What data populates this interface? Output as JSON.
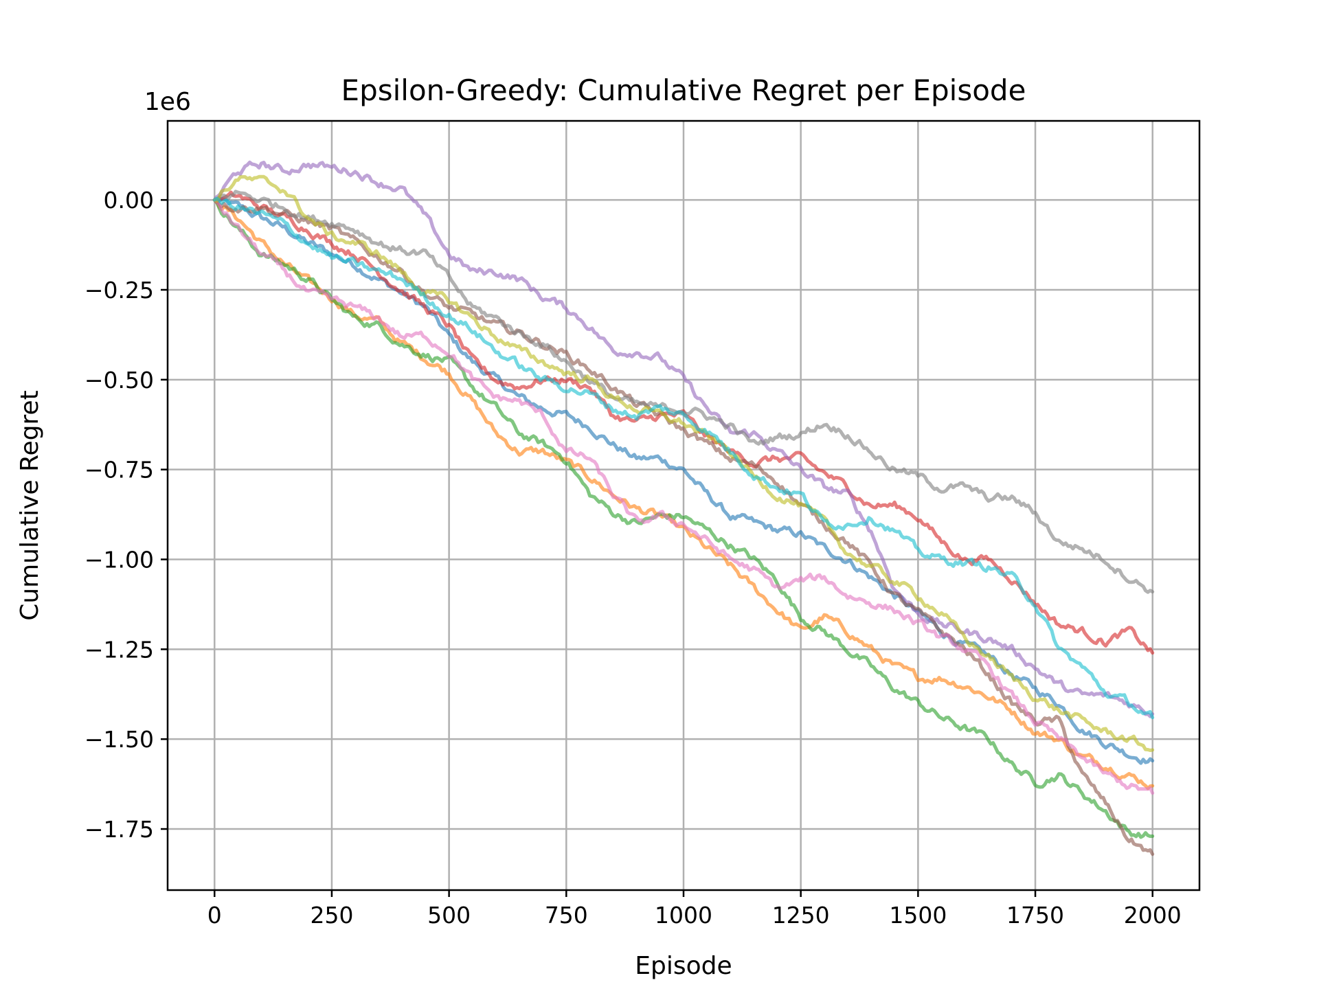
{
  "chart_data": {
    "type": "line",
    "title": "Epsilon-Greedy: Cumulative Regret per Episode",
    "xlabel": "Episode",
    "ylabel": "Cumulative Regret",
    "offset_text": "1e6",
    "xlim": [
      -100,
      2100
    ],
    "ylim": [
      -1.92,
      0.22
    ],
    "x_ticks": [
      0,
      250,
      500,
      750,
      1000,
      1250,
      1500,
      1750,
      2000
    ],
    "x_tick_labels": [
      "0",
      "250",
      "500",
      "750",
      "1000",
      "1250",
      "1500",
      "1750",
      "2000"
    ],
    "y_ticks": [
      0.0,
      -0.25,
      -0.5,
      -0.75,
      -1.0,
      -1.25,
      -1.5,
      -1.75
    ],
    "y_tick_labels": [
      "0.00",
      "−0.25",
      "−0.50",
      "−0.75",
      "−1.00",
      "−1.25",
      "−1.50",
      "−1.75"
    ],
    "grid": true,
    "legend": "none",
    "x": [
      0,
      50,
      100,
      150,
      200,
      250,
      300,
      350,
      400,
      450,
      500,
      550,
      600,
      650,
      700,
      750,
      800,
      850,
      900,
      950,
      1000,
      1050,
      1100,
      1150,
      1200,
      1250,
      1300,
      1350,
      1400,
      1450,
      1500,
      1550,
      1600,
      1650,
      1700,
      1750,
      1800,
      1850,
      1900,
      1950,
      2000
    ],
    "series": [
      {
        "color": "#1f77b4",
        "values": [
          0,
          -0.02,
          -0.05,
          -0.08,
          -0.12,
          -0.15,
          -0.18,
          -0.22,
          -0.26,
          -0.3,
          -0.38,
          -0.45,
          -0.5,
          -0.55,
          -0.58,
          -0.6,
          -0.63,
          -0.68,
          -0.72,
          -0.72,
          -0.75,
          -0.82,
          -0.88,
          -0.9,
          -0.92,
          -0.93,
          -0.97,
          -1.0,
          -1.05,
          -1.1,
          -1.15,
          -1.2,
          -1.24,
          -1.27,
          -1.32,
          -1.36,
          -1.4,
          -1.47,
          -1.51,
          -1.54,
          -1.56
        ]
      },
      {
        "color": "#ff7f0e",
        "values": [
          0,
          -0.05,
          -0.12,
          -0.18,
          -0.23,
          -0.27,
          -0.32,
          -0.34,
          -0.4,
          -0.44,
          -0.48,
          -0.56,
          -0.65,
          -0.7,
          -0.7,
          -0.73,
          -0.77,
          -0.82,
          -0.86,
          -0.88,
          -0.92,
          -0.97,
          -1.02,
          -1.08,
          -1.14,
          -1.2,
          -1.16,
          -1.2,
          -1.25,
          -1.3,
          -1.33,
          -1.33,
          -1.35,
          -1.38,
          -1.42,
          -1.48,
          -1.5,
          -1.55,
          -1.57,
          -1.6,
          -1.63
        ]
      },
      {
        "color": "#2ca02c",
        "values": [
          0,
          -0.08,
          -0.15,
          -0.18,
          -0.22,
          -0.28,
          -0.33,
          -0.35,
          -0.4,
          -0.43,
          -0.45,
          -0.52,
          -0.58,
          -0.65,
          -0.68,
          -0.72,
          -0.82,
          -0.87,
          -0.9,
          -0.88,
          -0.88,
          -0.92,
          -0.96,
          -1.0,
          -1.06,
          -1.16,
          -1.2,
          -1.25,
          -1.3,
          -1.36,
          -1.4,
          -1.44,
          -1.47,
          -1.5,
          -1.57,
          -1.62,
          -1.6,
          -1.65,
          -1.7,
          -1.76,
          -1.77
        ]
      },
      {
        "color": "#d62728",
        "values": [
          0,
          0.01,
          -0.02,
          -0.05,
          -0.08,
          -0.12,
          -0.15,
          -0.2,
          -0.25,
          -0.3,
          -0.35,
          -0.45,
          -0.5,
          -0.52,
          -0.5,
          -0.5,
          -0.52,
          -0.6,
          -0.62,
          -0.6,
          -0.6,
          -0.66,
          -0.7,
          -0.73,
          -0.72,
          -0.72,
          -0.76,
          -0.8,
          -0.85,
          -0.85,
          -0.88,
          -0.95,
          -1.0,
          -1.0,
          -1.05,
          -1.12,
          -1.18,
          -1.2,
          -1.23,
          -1.2,
          -1.26
        ]
      },
      {
        "color": "#9467bd",
        "values": [
          0,
          0.08,
          0.1,
          0.08,
          0.1,
          0.09,
          0.08,
          0.05,
          0.03,
          -0.05,
          -0.15,
          -0.2,
          -0.2,
          -0.22,
          -0.27,
          -0.3,
          -0.35,
          -0.42,
          -0.42,
          -0.44,
          -0.5,
          -0.58,
          -0.65,
          -0.65,
          -0.7,
          -0.75,
          -0.8,
          -0.82,
          -0.92,
          -1.08,
          -1.15,
          -1.18,
          -1.2,
          -1.22,
          -1.25,
          -1.3,
          -1.35,
          -1.38,
          -1.38,
          -1.4,
          -1.43
        ]
      },
      {
        "color": "#8c564b",
        "values": [
          0,
          -0.02,
          -0.02,
          -0.04,
          -0.06,
          -0.08,
          -0.12,
          -0.16,
          -0.2,
          -0.26,
          -0.3,
          -0.32,
          -0.35,
          -0.37,
          -0.4,
          -0.43,
          -0.47,
          -0.52,
          -0.57,
          -0.6,
          -0.64,
          -0.68,
          -0.72,
          -0.74,
          -0.78,
          -0.85,
          -0.9,
          -0.95,
          -1.02,
          -1.1,
          -1.15,
          -1.2,
          -1.25,
          -1.32,
          -1.4,
          -1.45,
          -1.45,
          -1.6,
          -1.68,
          -1.78,
          -1.82
        ]
      },
      {
        "color": "#e377c2",
        "values": [
          0,
          -0.08,
          -0.15,
          -0.2,
          -0.26,
          -0.28,
          -0.3,
          -0.33,
          -0.38,
          -0.38,
          -0.42,
          -0.5,
          -0.55,
          -0.56,
          -0.6,
          -0.7,
          -0.72,
          -0.82,
          -0.9,
          -0.88,
          -0.9,
          -0.95,
          -1.0,
          -1.03,
          -1.08,
          -1.06,
          -1.05,
          -1.1,
          -1.12,
          -1.14,
          -1.18,
          -1.22,
          -1.25,
          -1.3,
          -1.38,
          -1.45,
          -1.5,
          -1.55,
          -1.6,
          -1.63,
          -1.65
        ]
      },
      {
        "color": "#7f7f7f",
        "values": [
          0,
          0.02,
          0.0,
          -0.02,
          -0.05,
          -0.06,
          -0.08,
          -0.12,
          -0.14,
          -0.15,
          -0.22,
          -0.3,
          -0.33,
          -0.37,
          -0.4,
          -0.45,
          -0.5,
          -0.55,
          -0.57,
          -0.58,
          -0.58,
          -0.6,
          -0.63,
          -0.68,
          -0.66,
          -0.65,
          -0.62,
          -0.65,
          -0.7,
          -0.75,
          -0.77,
          -0.8,
          -0.8,
          -0.83,
          -0.83,
          -0.87,
          -0.95,
          -0.97,
          -1.0,
          -1.05,
          -1.09
        ]
      },
      {
        "color": "#bcbd22",
        "values": [
          0,
          0.06,
          0.05,
          0.03,
          -0.05,
          -0.1,
          -0.12,
          -0.15,
          -0.2,
          -0.26,
          -0.28,
          -0.33,
          -0.38,
          -0.42,
          -0.45,
          -0.48,
          -0.5,
          -0.55,
          -0.58,
          -0.6,
          -0.62,
          -0.66,
          -0.7,
          -0.77,
          -0.82,
          -0.85,
          -0.9,
          -0.98,
          -1.02,
          -1.06,
          -1.1,
          -1.15,
          -1.22,
          -1.27,
          -1.33,
          -1.38,
          -1.42,
          -1.45,
          -1.48,
          -1.5,
          -1.53
        ]
      },
      {
        "color": "#17becf",
        "values": [
          0,
          -0.02,
          -0.04,
          -0.07,
          -0.12,
          -0.16,
          -0.18,
          -0.2,
          -0.22,
          -0.27,
          -0.32,
          -0.36,
          -0.42,
          -0.46,
          -0.5,
          -0.52,
          -0.54,
          -0.58,
          -0.6,
          -0.58,
          -0.6,
          -0.64,
          -0.7,
          -0.76,
          -0.8,
          -0.82,
          -0.9,
          -0.9,
          -0.88,
          -0.92,
          -0.98,
          -1.0,
          -1.01,
          -1.02,
          -1.05,
          -1.12,
          -1.25,
          -1.3,
          -1.37,
          -1.4,
          -1.44
        ]
      }
    ]
  }
}
